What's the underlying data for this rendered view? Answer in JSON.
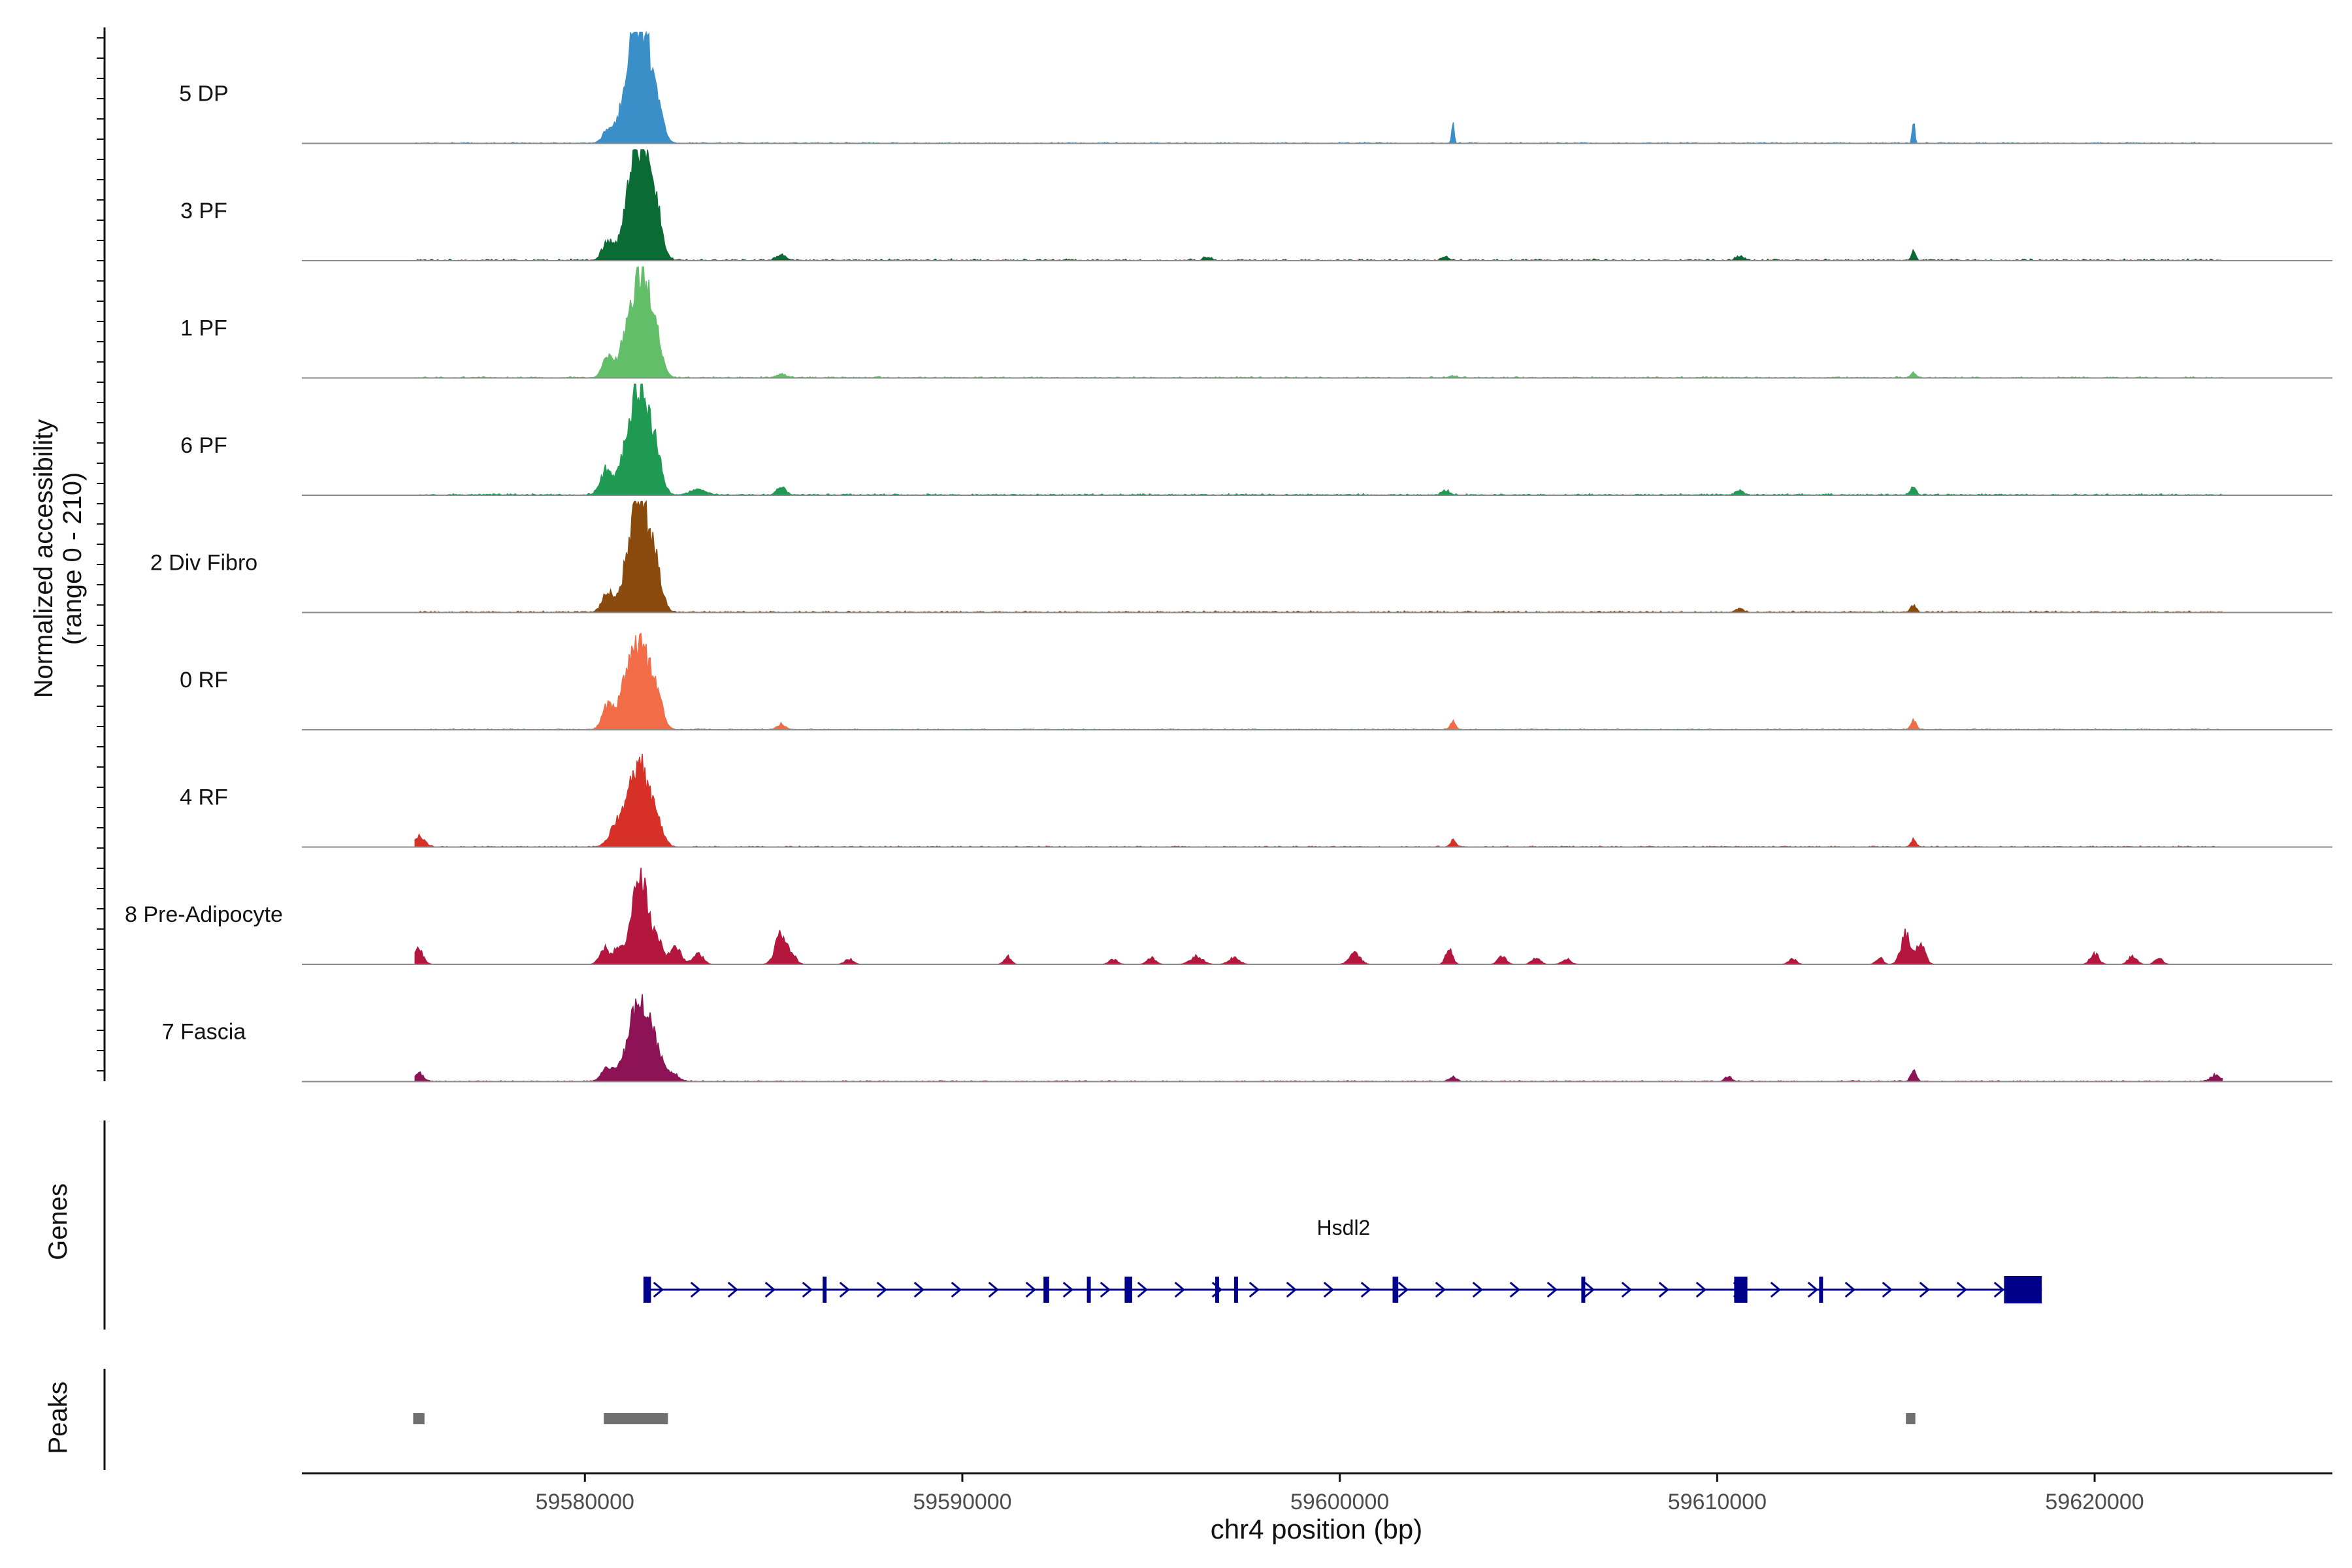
{
  "chart_data": {
    "type": "area",
    "ylabel_line1": "Normalized accessibility",
    "ylabel_line2": "(range 0 - 210)",
    "xlabel": "chr4 position (bp)",
    "xlim": [
      59572500,
      59626300
    ],
    "ylim": [
      0,
      210
    ],
    "xticks": [
      59580000,
      59590000,
      59600000,
      59610000,
      59620000
    ],
    "xtick_labels": [
      "59580000",
      "59590000",
      "59600000",
      "59610000",
      "59620000"
    ],
    "panel_labels": {
      "genes": "Genes",
      "peaks": "Peaks"
    },
    "tracks": [
      {
        "name": "5 DP",
        "color": "#3a8fc8",
        "peaks": [
          [
            59580600,
            40,
            130
          ],
          [
            59581200,
            200,
            260
          ],
          [
            59581500,
            370,
            240
          ],
          [
            59581900,
            120,
            160
          ],
          [
            59603000,
            80,
            30
          ],
          [
            59615200,
            90,
            30
          ]
        ],
        "noise": 4
      },
      {
        "name": "3 PF",
        "color": "#0b6b35",
        "peaks": [
          [
            59580600,
            65,
            140
          ],
          [
            59581200,
            145,
            240
          ],
          [
            59581500,
            390,
            240
          ],
          [
            59581900,
            130,
            160
          ],
          [
            59585200,
            20,
            120
          ],
          [
            59596500,
            12,
            90
          ],
          [
            59602800,
            12,
            90
          ],
          [
            59610600,
            16,
            100
          ],
          [
            59615200,
            35,
            50
          ]
        ],
        "noise": 7
      },
      {
        "name": "1 PF",
        "color": "#63be6a",
        "peaks": [
          [
            59580600,
            70,
            140
          ],
          [
            59581100,
            110,
            200
          ],
          [
            59581500,
            390,
            240
          ],
          [
            59581900,
            100,
            160
          ],
          [
            59585200,
            14,
            120
          ],
          [
            59603000,
            8,
            90
          ],
          [
            59615200,
            18,
            70
          ]
        ],
        "noise": 5
      },
      {
        "name": "6 PF",
        "color": "#1f9a52",
        "peaks": [
          [
            59580550,
            90,
            150
          ],
          [
            59581100,
            130,
            200
          ],
          [
            59581500,
            390,
            240
          ],
          [
            59581900,
            90,
            160
          ],
          [
            59583000,
            20,
            200
          ],
          [
            59585200,
            35,
            110
          ],
          [
            59602800,
            18,
            90
          ],
          [
            59610600,
            18,
            90
          ],
          [
            59615200,
            28,
            70
          ]
        ],
        "noise": 6
      },
      {
        "name": "2 Div Fibro",
        "color": "#8a4a0d",
        "peaks": [
          [
            59580600,
            75,
            140
          ],
          [
            59581200,
            140,
            220
          ],
          [
            59581500,
            390,
            240
          ],
          [
            59581900,
            100,
            160
          ],
          [
            59610600,
            15,
            90
          ],
          [
            59615200,
            28,
            70
          ]
        ],
        "noise": 6
      },
      {
        "name": "0 RF",
        "color": "#f26c47",
        "peaks": [
          [
            59580600,
            85,
            140
          ],
          [
            59581100,
            150,
            200
          ],
          [
            59581500,
            280,
            240
          ],
          [
            59581900,
            100,
            160
          ],
          [
            59585200,
            20,
            110
          ],
          [
            59603000,
            30,
            70
          ],
          [
            59615200,
            32,
            70
          ]
        ],
        "noise": 4
      },
      {
        "name": "4 RF",
        "color": "#d73027",
        "peaks": [
          [
            59575600,
            40,
            140
          ],
          [
            59580800,
            60,
            180
          ],
          [
            59581200,
            130,
            220
          ],
          [
            59581500,
            250,
            220
          ],
          [
            59581900,
            90,
            160
          ],
          [
            59603000,
            25,
            70
          ],
          [
            59615200,
            28,
            70
          ]
        ],
        "noise": 4
      },
      {
        "name": "8 Pre-Adipocyte",
        "color": "#b5163e",
        "peaks": [
          [
            59575600,
            55,
            120
          ],
          [
            59580500,
            60,
            120
          ],
          [
            59580900,
            70,
            140
          ],
          [
            59581300,
            90,
            150
          ],
          [
            59581500,
            290,
            180
          ],
          [
            59581900,
            90,
            150
          ],
          [
            59582400,
            60,
            150
          ],
          [
            59583000,
            40,
            130
          ],
          [
            59585200,
            110,
            150
          ],
          [
            59585500,
            30,
            110
          ],
          [
            59587000,
            20,
            110
          ],
          [
            59591200,
            30,
            90
          ],
          [
            59594000,
            18,
            110
          ],
          [
            59595000,
            25,
            110
          ],
          [
            59596200,
            30,
            160
          ],
          [
            59597200,
            25,
            140
          ],
          [
            59600400,
            40,
            140
          ],
          [
            59602900,
            55,
            90
          ],
          [
            59604300,
            28,
            110
          ],
          [
            59605200,
            25,
            110
          ],
          [
            59606000,
            20,
            110
          ],
          [
            59612000,
            20,
            100
          ],
          [
            59614300,
            25,
            90
          ],
          [
            59615000,
            110,
            130
          ],
          [
            59615400,
            80,
            110
          ],
          [
            59620000,
            40,
            110
          ],
          [
            59621000,
            30,
            110
          ],
          [
            59621700,
            22,
            100
          ]
        ],
        "noise": 0
      },
      {
        "name": "7 Fascia",
        "color": "#8e1256",
        "peaks": [
          [
            59575600,
            30,
            120
          ],
          [
            59580600,
            50,
            160
          ],
          [
            59581100,
            80,
            200
          ],
          [
            59581500,
            320,
            220
          ],
          [
            59581900,
            90,
            160
          ],
          [
            59582300,
            30,
            160
          ],
          [
            59603000,
            18,
            90
          ],
          [
            59610300,
            18,
            90
          ],
          [
            59615200,
            40,
            70
          ],
          [
            59623200,
            24,
            130
          ]
        ],
        "noise": 4
      }
    ],
    "gene": {
      "name": "Hsdl2",
      "color": "#00008b",
      "start": 59581600,
      "end": 59618600,
      "exons": [
        [
          59581550,
          59581750
        ],
        [
          59586300,
          59586400
        ],
        [
          59592150,
          59592300
        ],
        [
          59593300,
          59593350
        ],
        [
          59594300,
          59594500
        ],
        [
          59596700,
          59596780
        ],
        [
          59597200,
          59597280
        ],
        [
          59601400,
          59601550
        ],
        [
          59606400,
          59606460
        ],
        [
          59610450,
          59610800
        ],
        [
          59612700,
          59612800
        ],
        [
          59617600,
          59618600
        ]
      ]
    },
    "peaks_track": {
      "color": "#707070",
      "regions": [
        [
          59575450,
          59575750
        ],
        [
          59580500,
          59582200
        ],
        [
          59615000,
          59615250
        ]
      ]
    }
  }
}
